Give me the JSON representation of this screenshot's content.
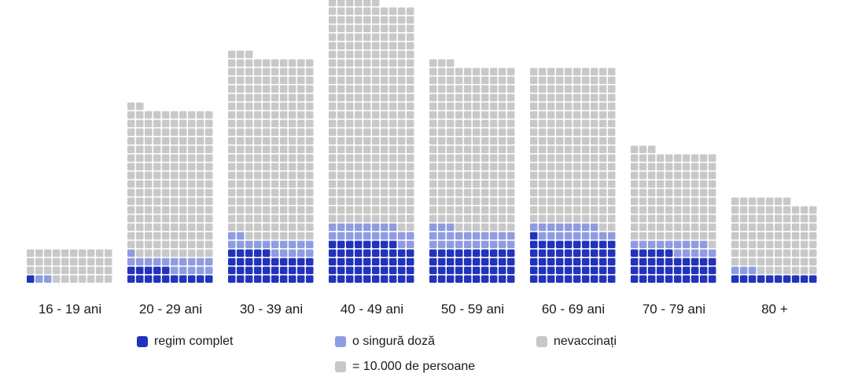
{
  "chart_data": {
    "type": "waffle",
    "title": "",
    "unit_note": "= 10.000 de persoane",
    "units_per_square": 10000,
    "columns_per_group": 10,
    "categories": [
      "16 - 19 ani",
      "20 - 29 ani",
      "30 - 39 ani",
      "40 - 49 ani",
      "50 - 59 ani",
      "60 - 69 ani",
      "70 - 79 ani",
      "80 +"
    ],
    "series": [
      {
        "name": "regim complet",
        "color": "#2233bb",
        "squares": [
          1,
          15,
          35,
          48,
          40,
          51,
          35,
          10
        ]
      },
      {
        "name": "o singură doză",
        "color": "#8f9ce0",
        "squares": [
          2,
          16,
          17,
          20,
          23,
          17,
          14,
          3
        ]
      },
      {
        "name": "nevaccinați",
        "color": "#c8c8c8",
        "squares": [
          37,
          171,
          211,
          258,
          190,
          182,
          104,
          84
        ]
      }
    ],
    "legend_position": "bottom",
    "grid": false
  }
}
